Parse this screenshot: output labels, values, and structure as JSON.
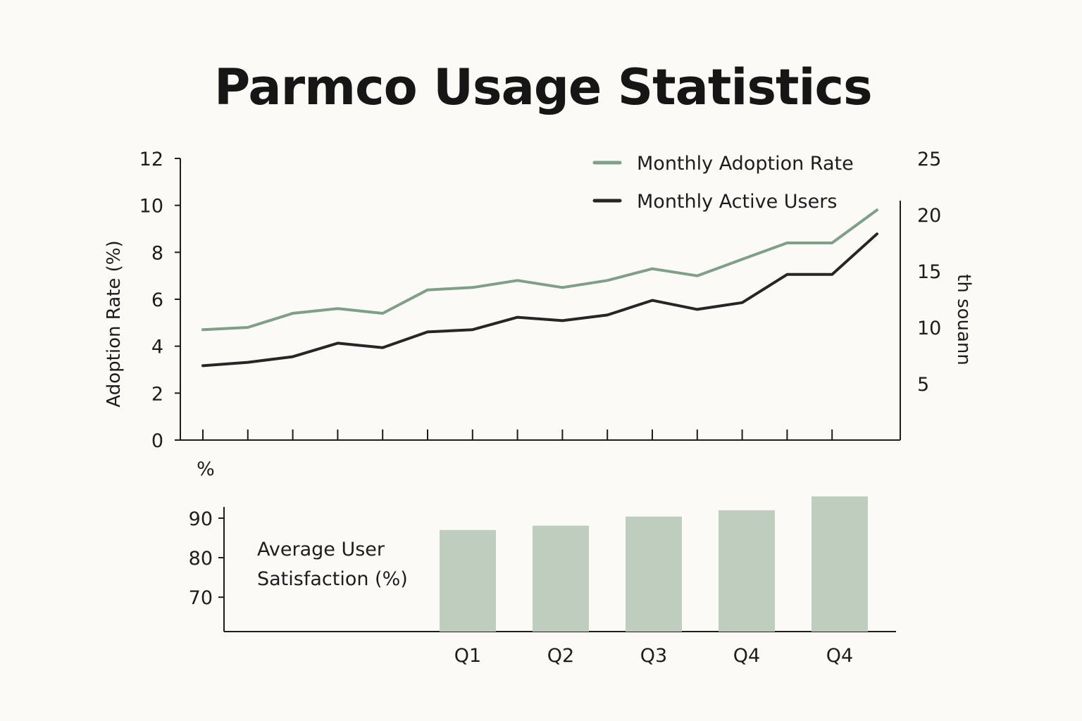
{
  "title": "Parmco Usage Statistics",
  "colors": {
    "adoption": "#7f9f88",
    "users": "#262626",
    "bars": "#bfcdbf",
    "axis": "#1d1d1d",
    "background": "#fcfaf6"
  },
  "chart_data": [
    {
      "type": "line",
      "ylabel_left": "Adoption Rate (%)",
      "ylabel_right": "th souann",
      "ylim_left": [
        0,
        12
      ],
      "ylim_right": [
        0,
        25
      ],
      "yticks_left": [
        "0",
        "2",
        "4",
        "6",
        "8",
        "10",
        "12"
      ],
      "yticks_right": [
        "5",
        "10",
        "15",
        "20",
        "25"
      ],
      "x_points": 16,
      "legend_position": "top-right",
      "series": [
        {
          "name": "Monthly Adoption Rate",
          "axis": "left",
          "values": [
            4.7,
            4.8,
            5.4,
            5.6,
            5.4,
            6.4,
            6.5,
            6.8,
            6.5,
            6.8,
            7.3,
            7.0,
            7.7,
            8.4,
            8.4,
            9.8
          ]
        },
        {
          "name": "Monthly Active Users",
          "axis": "right",
          "values": [
            6.6,
            6.9,
            7.4,
            8.6,
            8.2,
            9.6,
            9.8,
            10.9,
            10.6,
            11.1,
            12.4,
            11.6,
            12.2,
            14.7,
            14.7,
            18.3
          ]
        }
      ]
    },
    {
      "type": "bar",
      "ylabel": "%",
      "label": "Average User Satisfaction (%)",
      "label_lines": [
        "Average User",
        "Satisfaction (%)"
      ],
      "yticks": [
        "70",
        "80",
        "90"
      ],
      "ylim": [
        61.3,
        92.3
      ],
      "categories": [
        "Q1",
        "Q2",
        "Q3",
        "Q4",
        "Q4"
      ],
      "values": [
        87,
        88.1,
        90.4,
        92,
        95.5
      ]
    }
  ]
}
